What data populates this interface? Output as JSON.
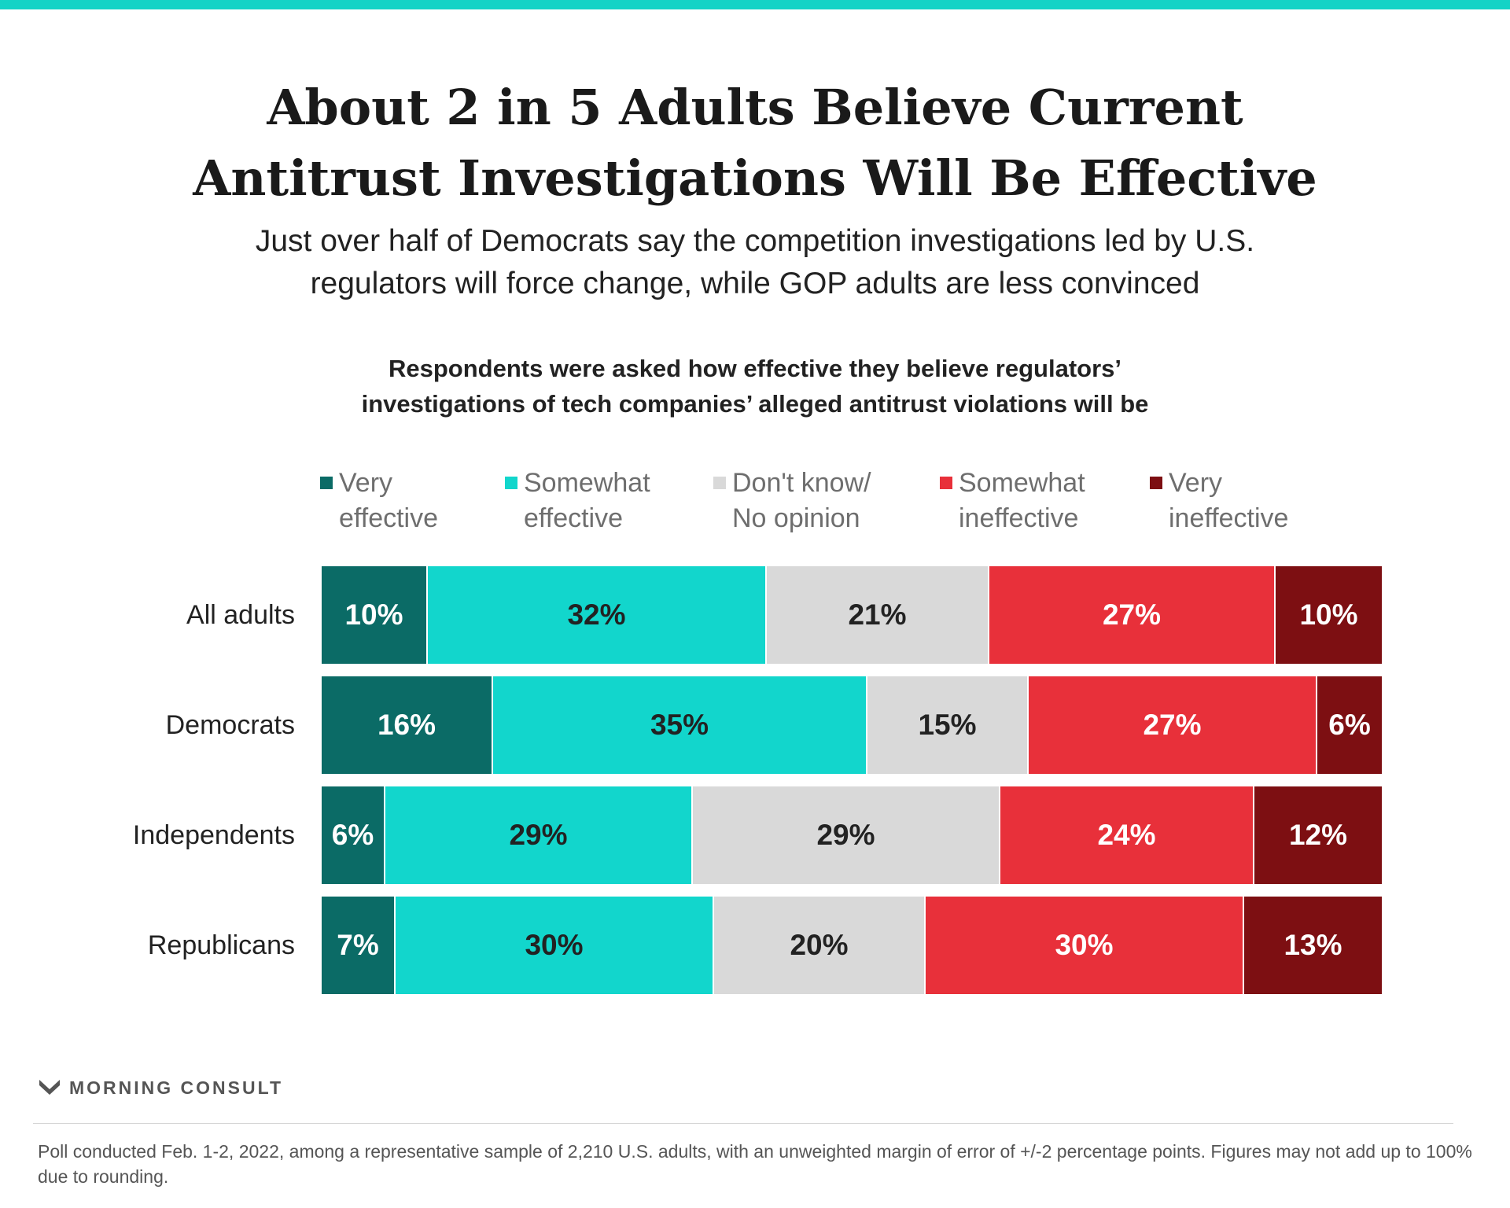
{
  "header": {
    "title_lines": [
      "About 2 in 5 Adults Believe Current",
      "Antitrust Investigations Will Be Effective"
    ],
    "subtitle_lines": [
      "Just over half of Democrats say the competition investigations led by U.S.",
      "regulators will force change, while GOP adults are less convinced"
    ],
    "question_lines": [
      "Respondents were asked how effective they believe regulators’",
      "investigations of tech companies’ alleged antitrust violations will be"
    ]
  },
  "chart_data": {
    "type": "bar",
    "orientation": "horizontal",
    "stacked": true,
    "normalized": true,
    "legend_placement": "top",
    "grid": false,
    "categories": [
      "All adults",
      "Democrats",
      "Independents",
      "Republicans"
    ],
    "series": [
      {
        "name_lines": [
          "Very",
          "effective"
        ],
        "color": "#0b6b66",
        "text_color": "#ffffff",
        "values": [
          10,
          16,
          6,
          7
        ]
      },
      {
        "name_lines": [
          "Somewhat",
          "effective"
        ],
        "color": "#12d6cc",
        "text_color": "#222222",
        "values": [
          32,
          35,
          29,
          30
        ]
      },
      {
        "name_lines": [
          "Don't know/",
          "No opinion"
        ],
        "color": "#d9d9d9",
        "text_color": "#222222",
        "values": [
          21,
          15,
          29,
          20
        ]
      },
      {
        "name_lines": [
          "Somewhat",
          "ineffective"
        ],
        "color": "#e8303a",
        "text_color": "#ffffff",
        "values": [
          27,
          27,
          24,
          30
        ]
      },
      {
        "name_lines": [
          "Very",
          "ineffective"
        ],
        "color": "#7d0f12",
        "text_color": "#ffffff",
        "values": [
          10,
          6,
          12,
          13
        ]
      }
    ],
    "labels": [
      [
        "10%",
        "32%",
        "21%",
        "27%",
        "10%"
      ],
      [
        "16%",
        "35%",
        "15%",
        "27%",
        "6%"
      ],
      [
        "6%",
        "29%",
        "29%",
        "24%",
        "12%"
      ],
      [
        "7%",
        "30%",
        "20%",
        "30%",
        "13%"
      ]
    ]
  },
  "footer": {
    "logo_text": "MORNING CONSULT",
    "logo_icon": "morning-consult-chevron-icon",
    "note": "Poll conducted Feb. 1-2, 2022, among a representative sample of 2,210 U.S. adults, with an unweighted margin of error of +/-2 percentage points. Figures may not add up to 100% due to rounding."
  }
}
